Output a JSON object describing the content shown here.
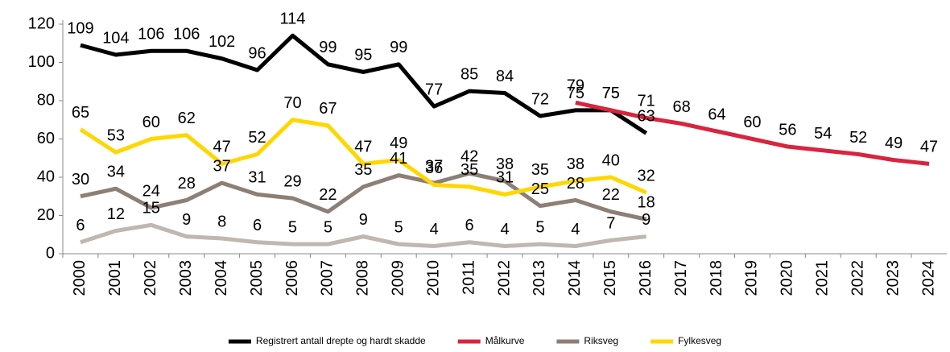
{
  "chart_data": {
    "type": "line",
    "categories": [
      "2000",
      "2001",
      "2002",
      "2003",
      "2004",
      "2005",
      "2006",
      "2007",
      "2008",
      "2009",
      "2010",
      "2011",
      "2012",
      "2013",
      "2014",
      "2015",
      "2016",
      "2017",
      "2018",
      "2019",
      "2020",
      "2021",
      "2022",
      "2023",
      "2024"
    ],
    "series": [
      {
        "name": "Registrert antall drepte og hardt skadde",
        "color": "#000000",
        "values": [
          109,
          104,
          106,
          106,
          102,
          96,
          114,
          99,
          95,
          99,
          77,
          85,
          84,
          72,
          75,
          75,
          63,
          null,
          null,
          null,
          null,
          null,
          null,
          null,
          null
        ]
      },
      {
        "name": "Målkurve",
        "color": "#d9243f",
        "values": [
          null,
          null,
          null,
          null,
          null,
          null,
          null,
          null,
          null,
          null,
          null,
          null,
          null,
          null,
          79,
          75,
          71,
          68,
          64,
          60,
          56,
          54,
          52,
          49,
          47
        ]
      },
      {
        "name": "Riksveg",
        "color": "#8c7f76",
        "values": [
          30,
          34,
          24,
          28,
          37,
          31,
          29,
          22,
          35,
          41,
          37,
          42,
          38,
          25,
          28,
          22,
          18,
          null,
          null,
          null,
          null,
          null,
          null,
          null,
          null
        ]
      },
      {
        "name": "Fylkesveg",
        "color": "#ffd700",
        "values": [
          65,
          53,
          60,
          62,
          47,
          52,
          70,
          67,
          47,
          49,
          36,
          35,
          31,
          35,
          38,
          40,
          32,
          null,
          null,
          null,
          null,
          null,
          null,
          null,
          null
        ]
      },
      {
        "color": "#bfb7b0",
        "values": [
          6,
          12,
          15,
          9,
          8,
          6,
          5,
          5,
          9,
          5,
          4,
          6,
          4,
          5,
          4,
          7,
          9,
          null,
          null,
          null,
          null,
          null,
          null,
          null,
          null
        ]
      }
    ],
    "ylim": [
      0,
      120
    ],
    "yticks": [
      0,
      20,
      40,
      60,
      80,
      100,
      120
    ],
    "grid": false
  }
}
